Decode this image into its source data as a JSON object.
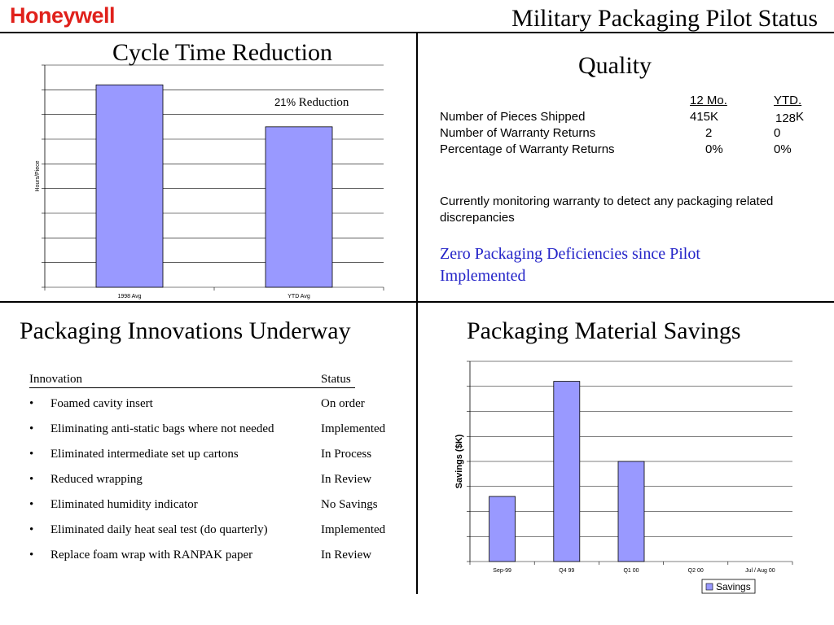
{
  "header": {
    "logo_text": "Honeywell",
    "title": "Military Packaging Pilot Status",
    "brand_color": "#e0211b"
  },
  "cycle_time": {
    "title": "Cycle Time Reduction",
    "annotation_value": "21%",
    "annotation_text": "Reduction"
  },
  "quality": {
    "title": "Quality",
    "col_12mo": "12 Mo.",
    "col_ytd": "YTD.",
    "rows": [
      {
        "label": "Number of Pieces Shipped",
        "mo12": "415K",
        "ytd": "128",
        "ytd_unit": "K"
      },
      {
        "label": "Number of Warranty Returns",
        "mo12": "2",
        "ytd": "0"
      },
      {
        "label": "Percentage of Warranty Returns",
        "mo12": "0%",
        "ytd": "0%"
      }
    ],
    "note": "Currently monitoring warranty to detect any packaging related discrepancies",
    "highlight_line1": "Zero Packaging Deficiencies since Pilot",
    "highlight_line2": "Implemented",
    "highlight_color": "#2424c8"
  },
  "innovations": {
    "title": "Packaging Innovations Underway",
    "col_innovation": "Innovation",
    "col_status": "Status",
    "items": [
      {
        "name": "Foamed cavity insert",
        "status": "On order"
      },
      {
        "name": "Eliminating anti-static bags where not needed",
        "status": "Implemented"
      },
      {
        "name": "Eliminated intermediate set up cartons",
        "status": "In Process"
      },
      {
        "name": "Reduced wrapping",
        "status": "In Review"
      },
      {
        "name": "Eliminated humidity indicator",
        "status": "No Savings"
      },
      {
        "name": "Eliminated daily heat seal test (do quarterly)",
        "status": "Implemented"
      },
      {
        "name": "Replace foam wrap with RANPAK paper",
        "status": "In Review"
      }
    ]
  },
  "savings": {
    "title": "Packaging Material Savings"
  },
  "chart_data": [
    {
      "type": "bar",
      "title": "",
      "xlabel": "",
      "ylabel": "Hours/Piece",
      "categories": [
        "1998 Avg",
        "YTD Avg"
      ],
      "values": [
        8.2,
        6.5
      ],
      "ylim": [
        0,
        9
      ],
      "grid": true,
      "bar_color": "#9999ff",
      "annotation": "21% Reduction"
    },
    {
      "type": "bar",
      "title": "",
      "xlabel": "",
      "ylabel": "Savings ($K)",
      "categories": [
        "Sep-99",
        "Q4 99",
        "Q1 00",
        "Q2 00",
        "Jul / Aug 00"
      ],
      "series": [
        {
          "name": "Savings",
          "values": [
            2.6,
            7.2,
            4.0,
            0,
            0
          ]
        }
      ],
      "ylim": [
        0,
        8
      ],
      "grid": true,
      "legend": "bottom-right",
      "bar_color": "#9999ff"
    }
  ]
}
